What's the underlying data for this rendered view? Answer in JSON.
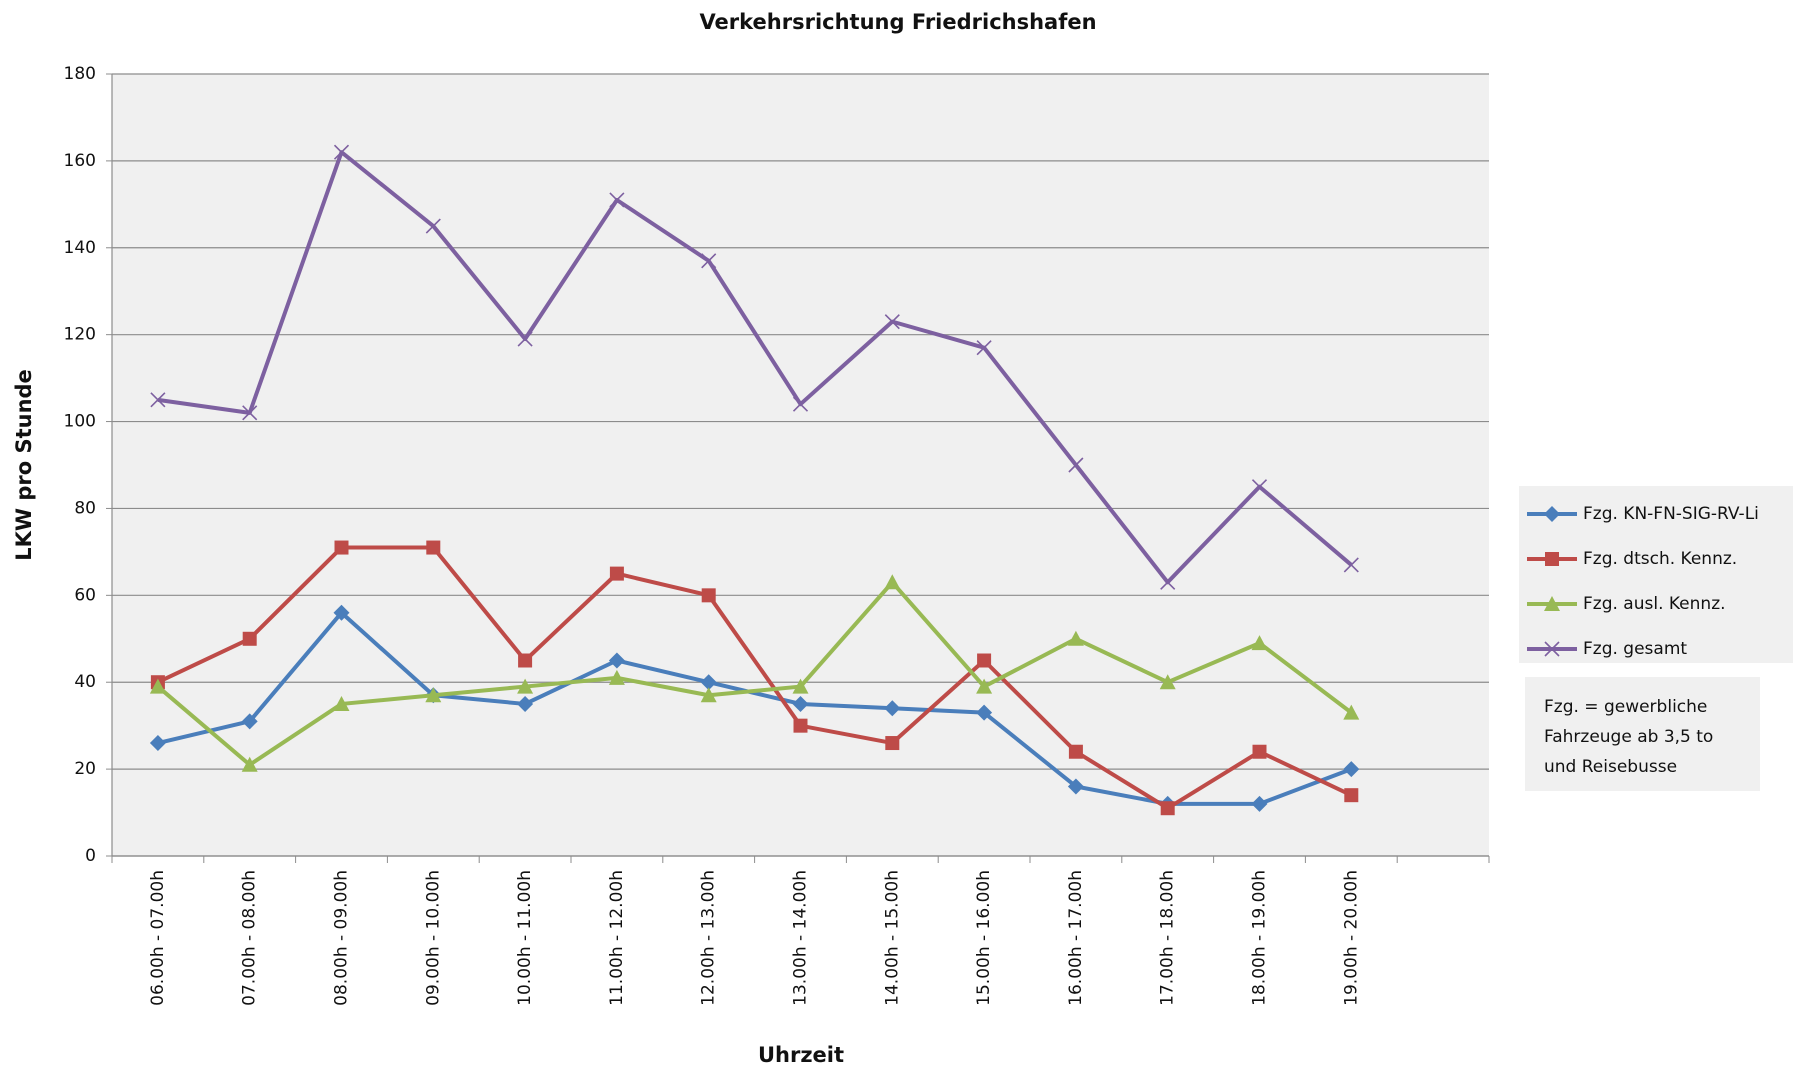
{
  "chart_data": {
    "type": "line",
    "title": "Verkehrsrichtung Friedrichshafen",
    "x_label": "Uhrzeit",
    "y_label": "LKW pro Stunde",
    "categories": [
      "06.00h - 07.00h",
      "07.00h - 08.00h",
      "08.00h - 09.00h",
      "09.00h - 10.00h",
      "10.00h - 11.00h",
      "11.00h - 12.00h",
      "12.00h - 13.00h",
      "13.00h - 14.00h",
      "14.00h - 15.00h",
      "15.00h - 16.00h",
      "16.00h - 17.00h",
      "17.00h - 18.00h",
      "18.00h - 19.00h",
      "19.00h - 20.00h",
      null
    ],
    "series": [
      {
        "name": "Fzg. KN-FN-SIG-RV-Li",
        "color": "#4a7ebb",
        "marker": "diamond",
        "values": [
          26,
          31,
          56,
          37,
          35,
          45,
          40,
          35,
          34,
          33,
          16,
          12,
          12,
          20,
          null
        ]
      },
      {
        "name": "Fzg. dtsch. Kennz.",
        "color": "#be4b48",
        "marker": "square",
        "values": [
          40,
          50,
          71,
          71,
          45,
          65,
          60,
          30,
          26,
          45,
          24,
          11,
          24,
          14,
          null
        ]
      },
      {
        "name": "Fzg. ausl. Kennz.",
        "color": "#98b954",
        "marker": "triangle",
        "values": [
          39,
          21,
          35,
          37,
          39,
          41,
          37,
          39,
          63,
          39,
          50,
          40,
          49,
          33,
          null
        ]
      },
      {
        "name": "Fzg. gesamt",
        "color": "#7d60a0",
        "marker": "x",
        "values": [
          105,
          102,
          162,
          145,
          119,
          151,
          137,
          104,
          123,
          117,
          90,
          63,
          85,
          67,
          null
        ]
      }
    ],
    "ylim": [
      0,
      180
    ],
    "yticks": [
      0,
      20,
      40,
      60,
      80,
      100,
      120,
      140,
      160,
      180
    ],
    "grid": true,
    "legend": "right",
    "note": [
      "Fzg. = gewerbliche",
      "Fahrzeuge ab 3,5 to",
      "und Reisebusse"
    ]
  }
}
